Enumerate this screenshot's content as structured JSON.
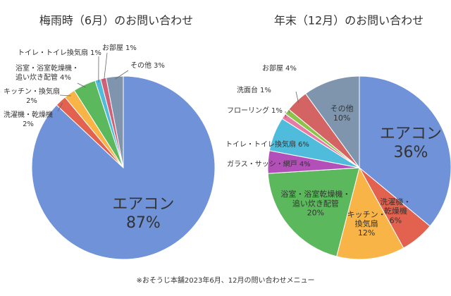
{
  "chart_data": [
    {
      "type": "pie",
      "title": "梅雨時（6月）のお問い合わせ",
      "categories": [
        "エアコン",
        "洗濯機・乾燥機",
        "キッチン・換気扇",
        "浴室・浴室乾燥機・\n追い炊き配管",
        "トイレ・トイレ換気扇",
        "お部屋",
        "その他"
      ],
      "values": [
        87,
        2,
        2,
        4,
        1,
        1,
        3
      ],
      "value_labels": [
        "87%",
        "2%",
        "2%",
        "4%",
        "1%",
        "1%",
        "3%"
      ],
      "colors": [
        "#6f92d9",
        "#e2624f",
        "#f8b447",
        "#5cb85c",
        "#4fbcdc",
        "#cf6278",
        "#7f95ad"
      ]
    },
    {
      "type": "pie",
      "title": "年末（12月）のお問い合わせ",
      "categories": [
        "エアコン",
        "洗濯機・\n乾燥機",
        "キッチン・\n換気扇",
        "浴室・浴室乾燥機・\n追い炊き配管",
        "ガラス・サッシ・網戸",
        "トイレ・トイレ換気扇",
        "フローリング",
        "洗面台",
        "お部屋",
        "その他"
      ],
      "values": [
        36,
        6,
        12,
        20,
        4,
        6,
        1,
        1,
        4,
        10
      ],
      "value_labels": [
        "36%",
        "6%",
        "12%",
        "20%",
        "4%",
        "6%",
        "1%",
        "1%",
        "4%",
        "10%"
      ],
      "colors": [
        "#6f92d9",
        "#e2624f",
        "#f8b447",
        "#5cb85c",
        "#b24fb8",
        "#4fbcdc",
        "#e87ba5",
        "#8cc34a",
        "#d46464",
        "#7f95ad"
      ]
    }
  ],
  "footnote": "※おそうじ本舗2023年6月、12月の問い合わせメニュー"
}
